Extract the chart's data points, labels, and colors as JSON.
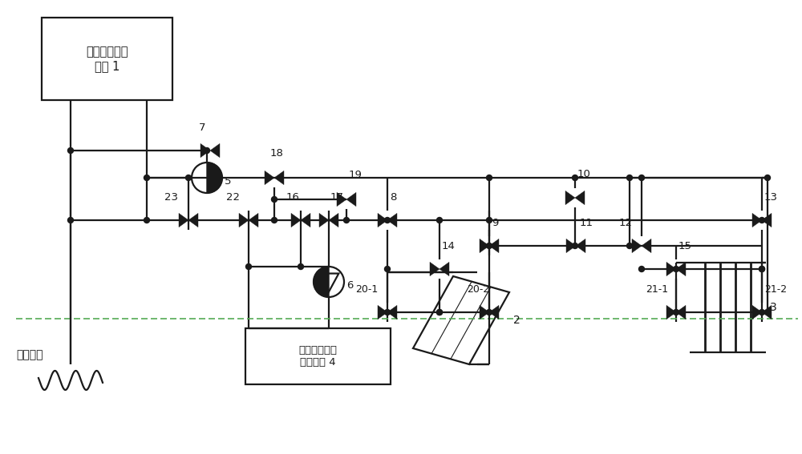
{
  "bg_color": "#ffffff",
  "line_color": "#1a1a1a",
  "dashed_color": "#55aa55",
  "box1_text": "工业余热回收\n装置 1",
  "box4_text": "低温热水供热\n末端装置 4",
  "label_heat_user": "热用户侧",
  "label_2": "2",
  "label_3": "3"
}
